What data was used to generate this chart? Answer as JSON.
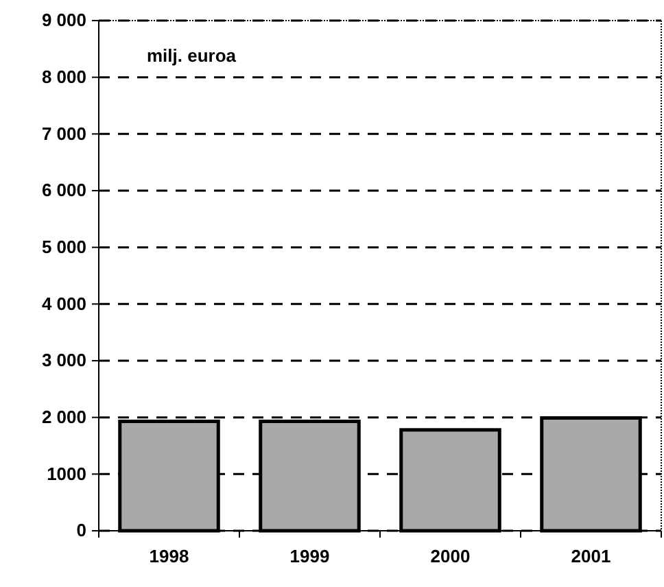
{
  "chart_data": {
    "type": "bar",
    "categories": [
      "1998",
      "1999",
      "2000",
      "2001"
    ],
    "values": [
      1930,
      1930,
      1780,
      1990
    ],
    "color": "#a9a9a9",
    "ylim": [
      0,
      9000
    ],
    "yticks": [
      0,
      {
        "value": 1000,
        "label": "1000"
      },
      {
        "value": 2000,
        "label": "2 000"
      },
      {
        "value": 3000,
        "label": "3 000"
      },
      {
        "value": 4000,
        "label": "4 000"
      },
      {
        "value": 5000,
        "label": "5 000"
      },
      {
        "value": 6000,
        "label": "6 000"
      },
      {
        "value": 7000,
        "label": "7 000"
      },
      {
        "value": 8000,
        "label": "8 000"
      },
      {
        "value": 9000,
        "label": "9 000"
      }
    ],
    "grid": "y",
    "line_style": "dashed",
    "annotations": [
      "milj. euroa"
    ]
  }
}
